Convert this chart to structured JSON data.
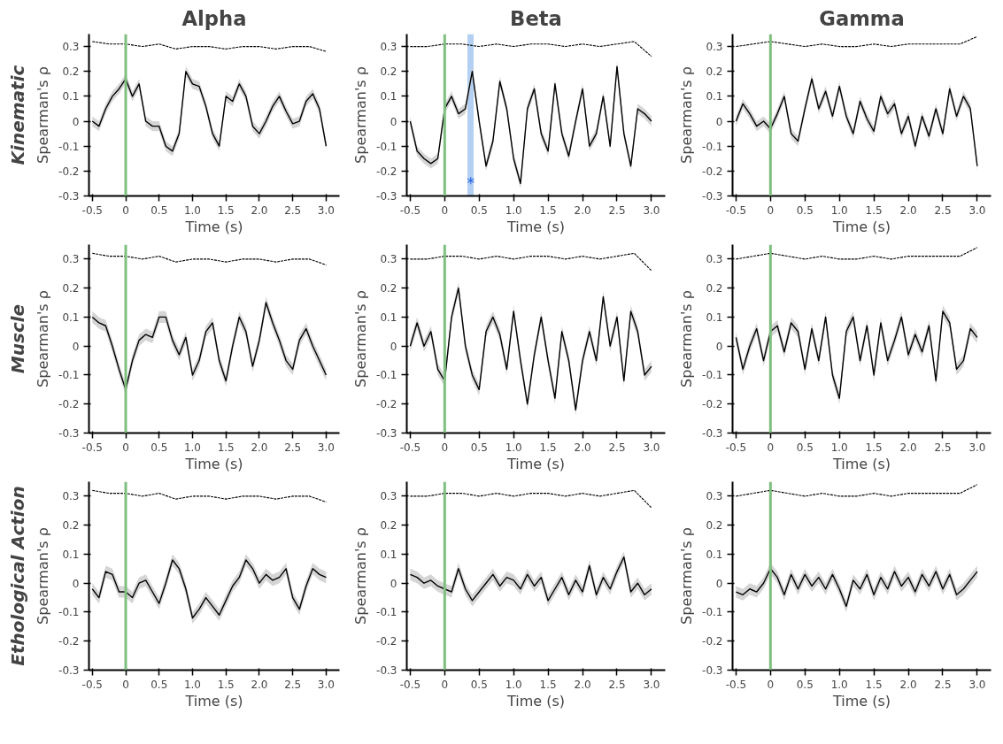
{
  "chart_data": [
    {
      "type": "line",
      "title": "Alpha",
      "xlabel": "Time (s)",
      "ylabel": "Spearman's ρ",
      "annotations": [
        "Kinematic"
      ],
      "xlim": [
        -0.55,
        3.2
      ],
      "ylim": [
        -0.3,
        0.35
      ],
      "xticks": [
        -0.5,
        0,
        0.5,
        {
          "value": 1,
          "label": "1.0"
        },
        1.5,
        {
          "value": 2,
          "label": "2.0"
        },
        2.5,
        {
          "value": 3,
          "label": "3.0"
        }
      ],
      "yticks": [
        -0.3,
        -0.2,
        -0.1,
        0,
        0.1,
        0.2,
        0.3
      ],
      "ref_lines": [
        {
          "axis": "x",
          "value": 0,
          "color": "#7fbf7f"
        }
      ],
      "x": [
        -0.5,
        -0.4,
        -0.3,
        -0.2,
        -0.1,
        0,
        0.1,
        0.2,
        0.3,
        0.4,
        0.5,
        0.6,
        0.7,
        0.8,
        0.9,
        1,
        1.1,
        1.2,
        1.3,
        1.4,
        1.5,
        1.6,
        1.7,
        1.8,
        1.9,
        2,
        2.1,
        2.2,
        2.3,
        2.4,
        2.5,
        2.6,
        2.7,
        2.8,
        2.9,
        3
      ],
      "series": [
        {
          "color": "#000000",
          "line_style": "solid",
          "values": [
            0,
            -0.02,
            0.05,
            0.1,
            0.13,
            0.17,
            0.1,
            0.15,
            0,
            -0.02,
            -0.02,
            -0.1,
            -0.12,
            -0.05,
            0.2,
            0.15,
            0.14,
            0.06,
            -0.05,
            -0.1,
            0.1,
            0.08,
            0.15,
            0.1,
            -0.02,
            -0.05,
            0,
            0.06,
            0.1,
            0.04,
            -0.01,
            0,
            0.08,
            0.11,
            0.05,
            -0.1
          ],
          "lower": [
            -0.02,
            -0.04,
            0.03,
            0.08,
            0.11,
            0.15,
            0.08,
            0.13,
            -0.02,
            -0.04,
            -0.04,
            -0.12,
            -0.14,
            -0.07,
            0.18,
            0.13,
            0.12,
            0.04,
            -0.07,
            -0.12,
            0.08,
            0.06,
            0.13,
            0.08,
            -0.04,
            -0.07,
            -0.02,
            0.04,
            0.08,
            0.02,
            -0.03,
            -0.02,
            0.06,
            0.09,
            0.03,
            -0.12
          ],
          "upper": [
            0.02,
            0,
            0.07,
            0.12,
            0.15,
            0.19,
            0.12,
            0.17,
            0.02,
            0,
            0,
            -0.08,
            -0.1,
            -0.03,
            0.22,
            0.17,
            0.16,
            0.08,
            -0.03,
            -0.08,
            0.12,
            0.1,
            0.17,
            0.12,
            0,
            -0.03,
            0.02,
            0.08,
            0.12,
            0.06,
            0.01,
            0.02,
            0.1,
            0.13,
            0.07,
            -0.08
          ]
        },
        {
          "color": "#000000",
          "line_style": "dotted",
          "x": [
            -0.5,
            -0.25,
            0,
            0.25,
            0.5,
            0.75,
            1,
            1.25,
            1.5,
            1.75,
            2,
            2.25,
            2.5,
            2.75,
            3
          ],
          "values": [
            0.32,
            0.31,
            0.31,
            0.3,
            0.31,
            0.29,
            0.3,
            0.3,
            0.29,
            0.3,
            0.3,
            0.29,
            0.3,
            0.3,
            0.28
          ]
        }
      ]
    },
    {
      "type": "line",
      "title": "Beta",
      "xlabel": "Time (s)",
      "ylabel": "Spearman's ρ",
      "annotations": [
        {
          "text": "*",
          "x": 0.38,
          "y": -0.25
        }
      ],
      "xlim": [
        -0.55,
        3.2
      ],
      "ylim": [
        -0.3,
        0.35
      ],
      "xticks": [
        -0.5,
        0,
        0.5,
        {
          "value": 1,
          "label": "1.0"
        },
        1.5,
        {
          "value": 2,
          "label": "2.0"
        },
        2.5,
        {
          "value": 3,
          "label": "3.0"
        }
      ],
      "yticks": [
        -0.3,
        -0.2,
        -0.1,
        0,
        0.1,
        0.2,
        0.3
      ],
      "ref_lines": [
        {
          "axis": "x",
          "value": 0,
          "color": "#7fbf7f"
        }
      ],
      "bands": [
        {
          "axis": "x",
          "from": 0.33,
          "to": 0.42,
          "color": "#a6c8f0"
        }
      ],
      "x": [
        -0.5,
        -0.4,
        -0.3,
        -0.2,
        -0.1,
        0,
        0.1,
        0.2,
        0.3,
        0.4,
        0.5,
        0.6,
        0.7,
        0.8,
        0.9,
        1,
        1.1,
        1.2,
        1.3,
        1.4,
        1.5,
        1.6,
        1.7,
        1.8,
        1.9,
        2,
        2.1,
        2.2,
        2.3,
        2.4,
        2.5,
        2.6,
        2.7,
        2.8,
        2.9,
        3
      ],
      "series": [
        {
          "color": "#000000",
          "line_style": "solid",
          "values": [
            0,
            -0.12,
            -0.15,
            -0.17,
            -0.15,
            0.05,
            0.1,
            0.03,
            0.05,
            0.2,
            0,
            -0.18,
            -0.08,
            0.16,
            0.05,
            -0.15,
            -0.25,
            0.05,
            0.13,
            -0.05,
            -0.12,
            0.15,
            -0.05,
            -0.14,
            0,
            0.13,
            -0.1,
            -0.05,
            0.1,
            -0.1,
            0.22,
            -0.05,
            -0.18,
            0.05,
            0.03,
            0
          ],
          "lower": [
            -0.02,
            -0.14,
            -0.17,
            -0.19,
            -0.17,
            0.03,
            0.08,
            0.01,
            0.03,
            0.18,
            -0.02,
            -0.2,
            -0.1,
            0.14,
            0.03,
            -0.17,
            -0.27,
            0.03,
            0.11,
            -0.07,
            -0.14,
            0.13,
            -0.07,
            -0.16,
            -0.02,
            0.11,
            -0.12,
            -0.07,
            0.08,
            -0.12,
            0.2,
            -0.07,
            -0.2,
            0.03,
            0.01,
            -0.02
          ],
          "upper": [
            0.02,
            -0.1,
            -0.13,
            -0.15,
            -0.13,
            0.07,
            0.12,
            0.05,
            0.07,
            0.22,
            0.02,
            -0.16,
            -0.06,
            0.18,
            0.07,
            -0.13,
            -0.23,
            0.07,
            0.15,
            -0.03,
            -0.1,
            0.17,
            -0.03,
            -0.12,
            0.02,
            0.15,
            -0.08,
            -0.03,
            0.12,
            -0.08,
            0.24,
            -0.03,
            -0.16,
            0.07,
            0.05,
            0.02
          ]
        },
        {
          "color": "#000000",
          "line_style": "dotted",
          "x": [
            -0.5,
            -0.25,
            0,
            0.25,
            0.5,
            0.75,
            1,
            1.25,
            1.5,
            1.75,
            2,
            2.25,
            2.5,
            2.75,
            3
          ],
          "values": [
            0.3,
            0.3,
            0.31,
            0.31,
            0.3,
            0.31,
            0.3,
            0.31,
            0.31,
            0.3,
            0.31,
            0.3,
            0.31,
            0.32,
            0.26
          ]
        }
      ]
    },
    {
      "type": "line",
      "title": "Gamma",
      "xlabel": "Time (s)",
      "ylabel": "Spearman's ρ",
      "xlim": [
        -0.55,
        3.2
      ],
      "ylim": [
        -0.3,
        0.35
      ],
      "xticks": [
        -0.5,
        0,
        0.5,
        {
          "value": 1,
          "label": "1.0"
        },
        1.5,
        {
          "value": 2,
          "label": "2.0"
        },
        2.5,
        {
          "value": 3,
          "label": "3.0"
        }
      ],
      "yticks": [
        -0.3,
        -0.2,
        -0.1,
        0,
        0.1,
        0.2,
        0.3
      ],
      "ref_lines": [
        {
          "axis": "x",
          "value": 0,
          "color": "#7fbf7f"
        }
      ],
      "x": [
        -0.5,
        -0.4,
        -0.3,
        -0.2,
        -0.1,
        0,
        0.1,
        0.2,
        0.3,
        0.4,
        0.5,
        0.6,
        0.7,
        0.8,
        0.9,
        1,
        1.1,
        1.2,
        1.3,
        1.4,
        1.5,
        1.6,
        1.7,
        1.8,
        1.9,
        2,
        2.1,
        2.2,
        2.3,
        2.4,
        2.5,
        2.6,
        2.7,
        2.8,
        2.9,
        3
      ],
      "series": [
        {
          "color": "#000000",
          "line_style": "solid",
          "values": [
            0,
            0.07,
            0.03,
            -0.02,
            0,
            -0.03,
            0.03,
            0.1,
            -0.05,
            -0.08,
            0.05,
            0.17,
            0.05,
            0.12,
            0.02,
            0.14,
            0.02,
            -0.05,
            0.08,
            0.01,
            -0.04,
            0.1,
            0.03,
            0.07,
            -0.05,
            0.02,
            -0.1,
            0.02,
            -0.06,
            0.05,
            -0.05,
            0.13,
            0.02,
            0.1,
            0.05,
            -0.18
          ],
          "lower": [
            -0.02,
            0.05,
            0.01,
            -0.04,
            -0.02,
            -0.05,
            0.01,
            0.08,
            -0.07,
            -0.1,
            0.03,
            0.15,
            0.03,
            0.1,
            0,
            0.12,
            0,
            -0.07,
            0.06,
            -0.01,
            -0.06,
            0.08,
            0.01,
            0.05,
            -0.07,
            0,
            -0.12,
            0,
            -0.08,
            0.03,
            -0.07,
            0.11,
            0,
            0.08,
            0.03,
            -0.2
          ],
          "upper": [
            0.02,
            0.09,
            0.05,
            0,
            0.02,
            -0.01,
            0.05,
            0.12,
            -0.03,
            -0.06,
            0.07,
            0.19,
            0.07,
            0.14,
            0.04,
            0.16,
            0.04,
            -0.03,
            0.1,
            0.03,
            -0.02,
            0.12,
            0.05,
            0.09,
            -0.03,
            0.04,
            -0.08,
            0.04,
            -0.04,
            0.07,
            -0.03,
            0.15,
            0.04,
            0.12,
            0.07,
            -0.16
          ]
        },
        {
          "color": "#000000",
          "line_style": "dotted",
          "x": [
            -0.5,
            -0.25,
            0,
            0.25,
            0.5,
            0.75,
            1,
            1.25,
            1.5,
            1.75,
            2,
            2.25,
            2.5,
            2.75,
            3
          ],
          "values": [
            0.3,
            0.31,
            0.32,
            0.31,
            0.3,
            0.31,
            0.3,
            0.3,
            0.31,
            0.3,
            0.31,
            0.31,
            0.31,
            0.31,
            0.34
          ]
        }
      ]
    },
    {
      "type": "line",
      "xlabel": "Time (s)",
      "ylabel": "Spearman's ρ",
      "annotations": [
        "Muscle"
      ],
      "xlim": [
        -0.55,
        3.2
      ],
      "ylim": [
        -0.3,
        0.35
      ],
      "xticks": [
        -0.5,
        0,
        0.5,
        {
          "value": 1,
          "label": "1.0"
        },
        1.5,
        {
          "value": 2,
          "label": "2.0"
        },
        2.5,
        {
          "value": 3,
          "label": "3.0"
        }
      ],
      "yticks": [
        -0.3,
        -0.2,
        -0.1,
        0,
        0.1,
        0.2,
        0.3
      ],
      "ref_lines": [
        {
          "axis": "x",
          "value": 0,
          "color": "#7fbf7f"
        }
      ],
      "x": [
        -0.5,
        -0.4,
        -0.3,
        -0.2,
        -0.1,
        0,
        0.1,
        0.2,
        0.3,
        0.4,
        0.5,
        0.6,
        0.7,
        0.8,
        0.9,
        1,
        1.1,
        1.2,
        1.3,
        1.4,
        1.5,
        1.6,
        1.7,
        1.8,
        1.9,
        2,
        2.1,
        2.2,
        2.3,
        2.4,
        2.5,
        2.6,
        2.7,
        2.8,
        2.9,
        3
      ],
      "series": [
        {
          "color": "#000000",
          "line_style": "solid",
          "values": [
            0.1,
            0.08,
            0.07,
            0,
            -0.08,
            -0.15,
            -0.05,
            0.02,
            0.04,
            0.03,
            0.1,
            0.1,
            0.02,
            -0.03,
            0.03,
            -0.1,
            -0.05,
            0.05,
            0.08,
            -0.05,
            -0.12,
            0,
            0.1,
            0.05,
            -0.07,
            0.02,
            0.15,
            0.08,
            0.02,
            -0.05,
            -0.08,
            0.02,
            0.06,
            0,
            -0.05,
            -0.1
          ],
          "lower": [
            0.08,
            0.06,
            0.05,
            -0.02,
            -0.1,
            -0.17,
            -0.07,
            0,
            0.02,
            0.01,
            0.08,
            0.08,
            0,
            -0.05,
            0.01,
            -0.12,
            -0.07,
            0.03,
            0.06,
            -0.07,
            -0.14,
            -0.02,
            0.08,
            0.03,
            -0.09,
            0,
            0.13,
            0.06,
            0,
            -0.07,
            -0.1,
            0,
            0.04,
            -0.02,
            -0.07,
            -0.12
          ],
          "upper": [
            0.12,
            0.1,
            0.09,
            0.02,
            -0.06,
            -0.13,
            -0.03,
            0.04,
            0.06,
            0.05,
            0.12,
            0.12,
            0.04,
            -0.01,
            0.05,
            -0.08,
            -0.03,
            0.07,
            0.1,
            -0.03,
            -0.1,
            0.02,
            0.12,
            0.07,
            -0.05,
            0.04,
            0.17,
            0.1,
            0.04,
            -0.03,
            -0.06,
            0.04,
            0.08,
            0.02,
            -0.03,
            -0.08
          ]
        },
        {
          "color": "#000000",
          "line_style": "dotted",
          "x": [
            -0.5,
            -0.25,
            0,
            0.25,
            0.5,
            0.75,
            1,
            1.25,
            1.5,
            1.75,
            2,
            2.25,
            2.5,
            2.75,
            3
          ],
          "values": [
            0.32,
            0.31,
            0.31,
            0.3,
            0.31,
            0.29,
            0.3,
            0.3,
            0.29,
            0.3,
            0.3,
            0.29,
            0.3,
            0.3,
            0.28
          ]
        }
      ]
    },
    {
      "type": "line",
      "xlabel": "Time (s)",
      "ylabel": "Spearman's ρ",
      "xlim": [
        -0.55,
        3.2
      ],
      "ylim": [
        -0.3,
        0.35
      ],
      "xticks": [
        -0.5,
        0,
        0.5,
        {
          "value": 1,
          "label": "1.0"
        },
        1.5,
        {
          "value": 2,
          "label": "2.0"
        },
        2.5,
        {
          "value": 3,
          "label": "3.0"
        }
      ],
      "yticks": [
        -0.3,
        -0.2,
        -0.1,
        0,
        0.1,
        0.2,
        0.3
      ],
      "ref_lines": [
        {
          "axis": "x",
          "value": 0,
          "color": "#7fbf7f"
        }
      ],
      "x": [
        -0.5,
        -0.4,
        -0.3,
        -0.2,
        -0.1,
        0,
        0.1,
        0.2,
        0.3,
        0.4,
        0.5,
        0.6,
        0.7,
        0.8,
        0.9,
        1,
        1.1,
        1.2,
        1.3,
        1.4,
        1.5,
        1.6,
        1.7,
        1.8,
        1.9,
        2,
        2.1,
        2.2,
        2.3,
        2.4,
        2.5,
        2.6,
        2.7,
        2.8,
        2.9,
        3
      ],
      "series": [
        {
          "color": "#000000",
          "line_style": "solid",
          "values": [
            0,
            0.08,
            0,
            0.05,
            -0.08,
            -0.12,
            0.1,
            0.2,
            0,
            -0.1,
            -0.15,
            0.05,
            0.1,
            0.04,
            -0.08,
            0.12,
            -0.05,
            -0.2,
            -0.03,
            0.1,
            -0.05,
            -0.18,
            0.05,
            -0.05,
            -0.22,
            -0.05,
            0.05,
            -0.05,
            0.17,
            0,
            0.1,
            -0.12,
            0.12,
            0.05,
            -0.1,
            -0.07
          ],
          "lower": [
            -0.02,
            0.06,
            -0.02,
            0.03,
            -0.1,
            -0.14,
            0.08,
            0.18,
            -0.02,
            -0.12,
            -0.17,
            0.03,
            0.08,
            0.02,
            -0.1,
            0.1,
            -0.07,
            -0.22,
            -0.05,
            0.08,
            -0.07,
            -0.2,
            0.03,
            -0.07,
            -0.24,
            -0.07,
            0.03,
            -0.07,
            0.15,
            -0.02,
            0.08,
            -0.14,
            0.1,
            0.03,
            -0.12,
            -0.09
          ],
          "upper": [
            0.02,
            0.1,
            0.02,
            0.07,
            -0.06,
            -0.1,
            0.12,
            0.22,
            0.02,
            -0.08,
            -0.13,
            0.07,
            0.12,
            0.06,
            -0.06,
            0.14,
            -0.03,
            -0.18,
            -0.01,
            0.12,
            -0.03,
            -0.16,
            0.07,
            -0.03,
            -0.2,
            -0.03,
            0.07,
            -0.03,
            0.19,
            0.02,
            0.12,
            -0.1,
            0.14,
            0.07,
            -0.08,
            -0.05
          ]
        },
        {
          "color": "#000000",
          "line_style": "dotted",
          "x": [
            -0.5,
            -0.25,
            0,
            0.25,
            0.5,
            0.75,
            1,
            1.25,
            1.5,
            1.75,
            2,
            2.25,
            2.5,
            2.75,
            3
          ],
          "values": [
            0.3,
            0.3,
            0.31,
            0.31,
            0.3,
            0.31,
            0.3,
            0.31,
            0.31,
            0.3,
            0.31,
            0.3,
            0.31,
            0.32,
            0.26
          ]
        }
      ]
    },
    {
      "type": "line",
      "xlabel": "Time (s)",
      "ylabel": "Spearman's ρ",
      "xlim": [
        -0.55,
        3.2
      ],
      "ylim": [
        -0.3,
        0.35
      ],
      "xticks": [
        -0.5,
        0,
        0.5,
        {
          "value": 1,
          "label": "1.0"
        },
        1.5,
        {
          "value": 2,
          "label": "2.0"
        },
        2.5,
        {
          "value": 3,
          "label": "3.0"
        }
      ],
      "yticks": [
        -0.3,
        -0.2,
        -0.1,
        0,
        0.1,
        0.2,
        0.3
      ],
      "ref_lines": [
        {
          "axis": "x",
          "value": 0,
          "color": "#7fbf7f"
        }
      ],
      "x": [
        -0.5,
        -0.4,
        -0.3,
        -0.2,
        -0.1,
        0,
        0.1,
        0.2,
        0.3,
        0.4,
        0.5,
        0.6,
        0.7,
        0.8,
        0.9,
        1,
        1.1,
        1.2,
        1.3,
        1.4,
        1.5,
        1.6,
        1.7,
        1.8,
        1.9,
        2,
        2.1,
        2.2,
        2.3,
        2.4,
        2.5,
        2.6,
        2.7,
        2.8,
        2.9,
        3
      ],
      "series": [
        {
          "color": "#000000",
          "line_style": "solid",
          "values": [
            0.03,
            -0.08,
            0,
            0.06,
            -0.05,
            0.05,
            0.07,
            -0.02,
            0.08,
            0.05,
            -0.08,
            0.06,
            -0.05,
            0.1,
            -0.1,
            -0.18,
            0.05,
            0.1,
            -0.05,
            0.07,
            -0.1,
            0.08,
            -0.05,
            0.02,
            0.1,
            -0.03,
            0.04,
            -0.02,
            0.07,
            -0.12,
            0.12,
            0.08,
            -0.08,
            -0.05,
            0.06,
            0.03
          ],
          "lower": [
            0.01,
            -0.1,
            -0.02,
            0.04,
            -0.07,
            0.03,
            0.05,
            -0.04,
            0.06,
            0.03,
            -0.1,
            0.04,
            -0.07,
            0.08,
            -0.12,
            -0.2,
            0.03,
            0.08,
            -0.07,
            0.05,
            -0.12,
            0.06,
            -0.07,
            0,
            0.08,
            -0.05,
            0.02,
            -0.04,
            0.05,
            -0.14,
            0.1,
            0.06,
            -0.1,
            -0.07,
            0.04,
            0.01
          ],
          "upper": [
            0.05,
            -0.06,
            0.02,
            0.08,
            -0.03,
            0.07,
            0.09,
            0,
            0.1,
            0.07,
            -0.06,
            0.08,
            -0.03,
            0.12,
            -0.08,
            -0.16,
            0.07,
            0.12,
            -0.03,
            0.09,
            -0.08,
            0.1,
            -0.03,
            0.04,
            0.12,
            -0.01,
            0.06,
            0,
            0.09,
            -0.1,
            0.14,
            0.1,
            -0.06,
            -0.03,
            0.08,
            0.05
          ]
        },
        {
          "color": "#000000",
          "line_style": "dotted",
          "x": [
            -0.5,
            -0.25,
            0,
            0.25,
            0.5,
            0.75,
            1,
            1.25,
            1.5,
            1.75,
            2,
            2.25,
            2.5,
            2.75,
            3
          ],
          "values": [
            0.3,
            0.31,
            0.32,
            0.31,
            0.3,
            0.31,
            0.3,
            0.3,
            0.31,
            0.3,
            0.31,
            0.31,
            0.31,
            0.31,
            0.34
          ]
        }
      ]
    },
    {
      "type": "line",
      "xlabel": "Time (s)",
      "ylabel": "Spearman's ρ",
      "annotations": [
        "Ethological Action"
      ],
      "xlim": [
        -0.55,
        3.2
      ],
      "ylim": [
        -0.3,
        0.35
      ],
      "xticks": [
        -0.5,
        0,
        0.5,
        {
          "value": 1,
          "label": "1.0"
        },
        1.5,
        {
          "value": 2,
          "label": "2.0"
        },
        2.5,
        {
          "value": 3,
          "label": "3.0"
        }
      ],
      "yticks": [
        -0.3,
        -0.2,
        -0.1,
        0,
        0.1,
        0.2,
        0.3
      ],
      "ref_lines": [
        {
          "axis": "x",
          "value": 0,
          "color": "#7fbf7f"
        }
      ],
      "x": [
        -0.5,
        -0.4,
        -0.3,
        -0.2,
        -0.1,
        0,
        0.1,
        0.2,
        0.3,
        0.4,
        0.5,
        0.6,
        0.7,
        0.8,
        0.9,
        1,
        1.1,
        1.2,
        1.3,
        1.4,
        1.5,
        1.6,
        1.7,
        1.8,
        1.9,
        2,
        2.1,
        2.2,
        2.3,
        2.4,
        2.5,
        2.6,
        2.7,
        2.8,
        2.9,
        3
      ],
      "series": [
        {
          "color": "#000000",
          "line_style": "solid",
          "values": [
            -0.02,
            -0.05,
            0.04,
            0.03,
            -0.03,
            -0.03,
            -0.05,
            0,
            0.01,
            -0.03,
            -0.07,
            0,
            0.08,
            0.05,
            -0.02,
            -0.12,
            -0.09,
            -0.05,
            -0.08,
            -0.11,
            -0.06,
            -0.01,
            0.02,
            0.08,
            0.05,
            0,
            0.03,
            0.01,
            0.02,
            0.05,
            -0.05,
            -0.09,
            -0.01,
            0.05,
            0.03,
            0.02
          ],
          "lower": [
            -0.04,
            -0.07,
            0.02,
            0.01,
            -0.05,
            -0.05,
            -0.07,
            -0.02,
            -0.01,
            -0.05,
            -0.09,
            -0.02,
            0.06,
            0.03,
            -0.04,
            -0.14,
            -0.11,
            -0.07,
            -0.1,
            -0.13,
            -0.08,
            -0.03,
            0,
            0.06,
            0.03,
            -0.02,
            0.01,
            -0.01,
            0,
            0.03,
            -0.07,
            -0.11,
            -0.03,
            0.03,
            0.01,
            0
          ],
          "upper": [
            0,
            -0.03,
            0.06,
            0.05,
            -0.01,
            -0.01,
            -0.03,
            0.02,
            0.03,
            -0.01,
            -0.05,
            0.02,
            0.1,
            0.07,
            0,
            -0.1,
            -0.07,
            -0.03,
            -0.06,
            -0.09,
            -0.04,
            0.01,
            0.04,
            0.1,
            0.07,
            0.02,
            0.05,
            0.03,
            0.04,
            0.07,
            -0.03,
            -0.07,
            0.01,
            0.07,
            0.05,
            0.04
          ]
        },
        {
          "color": "#000000",
          "line_style": "dotted",
          "x": [
            -0.5,
            -0.25,
            0,
            0.25,
            0.5,
            0.75,
            1,
            1.25,
            1.5,
            1.75,
            2,
            2.25,
            2.5,
            2.75,
            3
          ],
          "values": [
            0.32,
            0.31,
            0.31,
            0.3,
            0.31,
            0.29,
            0.3,
            0.3,
            0.29,
            0.3,
            0.3,
            0.29,
            0.3,
            0.3,
            0.28
          ]
        }
      ]
    },
    {
      "type": "line",
      "xlabel": "Time (s)",
      "ylabel": "Spearman's ρ",
      "xlim": [
        -0.55,
        3.2
      ],
      "ylim": [
        -0.3,
        0.35
      ],
      "xticks": [
        -0.5,
        0,
        0.5,
        {
          "value": 1,
          "label": "1.0"
        },
        1.5,
        {
          "value": 2,
          "label": "2.0"
        },
        2.5,
        {
          "value": 3,
          "label": "3.0"
        }
      ],
      "yticks": [
        -0.3,
        -0.2,
        -0.1,
        0,
        0.1,
        0.2,
        0.3
      ],
      "ref_lines": [
        {
          "axis": "x",
          "value": 0,
          "color": "#7fbf7f"
        }
      ],
      "x": [
        -0.5,
        -0.4,
        -0.3,
        -0.2,
        -0.1,
        0,
        0.1,
        0.2,
        0.3,
        0.4,
        0.5,
        0.6,
        0.7,
        0.8,
        0.9,
        1,
        1.1,
        1.2,
        1.3,
        1.4,
        1.5,
        1.6,
        1.7,
        1.8,
        1.9,
        2,
        2.1,
        2.2,
        2.3,
        2.4,
        2.5,
        2.6,
        2.7,
        2.8,
        2.9,
        3
      ],
      "series": [
        {
          "color": "#000000",
          "line_style": "solid",
          "values": [
            0.03,
            0.02,
            0,
            0.01,
            -0.01,
            -0.02,
            -0.03,
            0.05,
            -0.02,
            -0.06,
            -0.03,
            0,
            0.03,
            -0.01,
            0.02,
            0.01,
            -0.02,
            0.03,
            -0.01,
            0.02,
            -0.06,
            -0.02,
            0.02,
            -0.04,
            0.01,
            -0.03,
            0.06,
            -0.04,
            0.02,
            -0.02,
            0.04,
            0.09,
            -0.03,
            0,
            -0.04,
            -0.02
          ],
          "lower": [
            0.01,
            0,
            -0.02,
            -0.01,
            -0.03,
            -0.04,
            -0.05,
            0.03,
            -0.04,
            -0.08,
            -0.05,
            -0.02,
            0.01,
            -0.03,
            0,
            -0.01,
            -0.04,
            0.01,
            -0.03,
            0,
            -0.08,
            -0.04,
            0,
            -0.06,
            -0.01,
            -0.05,
            0.04,
            -0.06,
            0,
            -0.04,
            0.02,
            0.07,
            -0.05,
            -0.02,
            -0.06,
            -0.04
          ],
          "upper": [
            0.05,
            0.04,
            0.02,
            0.03,
            0.01,
            0,
            -0.01,
            0.07,
            0,
            -0.04,
            -0.01,
            0.02,
            0.05,
            0.01,
            0.04,
            0.03,
            0,
            0.05,
            0.01,
            0.04,
            -0.04,
            0,
            0.04,
            -0.02,
            0.03,
            -0.01,
            0.08,
            -0.02,
            0.04,
            0,
            0.06,
            0.11,
            -0.01,
            0.02,
            -0.02,
            0
          ]
        },
        {
          "color": "#000000",
          "line_style": "dotted",
          "x": [
            -0.5,
            -0.25,
            0,
            0.25,
            0.5,
            0.75,
            1,
            1.25,
            1.5,
            1.75,
            2,
            2.25,
            2.5,
            2.75,
            3
          ],
          "values": [
            0.3,
            0.3,
            0.31,
            0.31,
            0.3,
            0.31,
            0.3,
            0.31,
            0.31,
            0.3,
            0.31,
            0.3,
            0.31,
            0.32,
            0.26
          ]
        }
      ]
    },
    {
      "type": "line",
      "xlabel": "Time (s)",
      "ylabel": "Spearman's ρ",
      "xlim": [
        -0.55,
        3.2
      ],
      "ylim": [
        -0.3,
        0.35
      ],
      "xticks": [
        -0.5,
        0,
        0.5,
        {
          "value": 1,
          "label": "1.0"
        },
        1.5,
        {
          "value": 2,
          "label": "2.0"
        },
        2.5,
        {
          "value": 3,
          "label": "3.0"
        }
      ],
      "yticks": [
        -0.3,
        -0.2,
        -0.1,
        0,
        0.1,
        0.2,
        0.3
      ],
      "ref_lines": [
        {
          "axis": "x",
          "value": 0,
          "color": "#7fbf7f"
        }
      ],
      "x": [
        -0.5,
        -0.4,
        -0.3,
        -0.2,
        -0.1,
        0,
        0.1,
        0.2,
        0.3,
        0.4,
        0.5,
        0.6,
        0.7,
        0.8,
        0.9,
        1,
        1.1,
        1.2,
        1.3,
        1.4,
        1.5,
        1.6,
        1.7,
        1.8,
        1.9,
        2,
        2.1,
        2.2,
        2.3,
        2.4,
        2.5,
        2.6,
        2.7,
        2.8,
        2.9,
        3
      ],
      "series": [
        {
          "color": "#000000",
          "line_style": "solid",
          "values": [
            -0.03,
            -0.04,
            -0.02,
            -0.03,
            0,
            0.05,
            0.02,
            -0.04,
            0.03,
            -0.02,
            0.03,
            -0.01,
            0.02,
            -0.02,
            0.03,
            -0.02,
            -0.08,
            0.01,
            -0.02,
            0.03,
            -0.04,
            0.02,
            -0.02,
            0.04,
            -0.01,
            0.02,
            -0.03,
            0.03,
            -0.01,
            0.04,
            -0.02,
            0.03,
            -0.04,
            -0.02,
            0.01,
            0.04
          ],
          "lower": [
            -0.05,
            -0.06,
            -0.04,
            -0.05,
            -0.02,
            0.03,
            0,
            -0.06,
            0.01,
            -0.04,
            0.01,
            -0.03,
            0,
            -0.04,
            0.01,
            -0.04,
            -0.1,
            -0.01,
            -0.04,
            0.01,
            -0.06,
            0,
            -0.04,
            0.02,
            -0.03,
            0,
            -0.05,
            0.01,
            -0.03,
            0.02,
            -0.04,
            0.01,
            -0.06,
            -0.04,
            -0.01,
            0.02
          ],
          "upper": [
            -0.01,
            -0.02,
            0,
            -0.01,
            0.02,
            0.07,
            0.04,
            -0.02,
            0.05,
            0,
            0.05,
            0.01,
            0.04,
            0,
            0.05,
            0,
            -0.06,
            0.03,
            0,
            0.05,
            -0.02,
            0.04,
            0,
            0.06,
            0.01,
            0.04,
            -0.01,
            0.05,
            0.01,
            0.06,
            0,
            0.05,
            -0.02,
            0,
            0.03,
            0.06
          ]
        },
        {
          "color": "#000000",
          "line_style": "dotted",
          "x": [
            -0.5,
            -0.25,
            0,
            0.25,
            0.5,
            0.75,
            1,
            1.25,
            1.5,
            1.75,
            2,
            2.25,
            2.5,
            2.75,
            3
          ],
          "values": [
            0.3,
            0.31,
            0.32,
            0.31,
            0.3,
            0.31,
            0.3,
            0.3,
            0.31,
            0.3,
            0.31,
            0.31,
            0.31,
            0.31,
            0.34
          ]
        }
      ]
    }
  ]
}
